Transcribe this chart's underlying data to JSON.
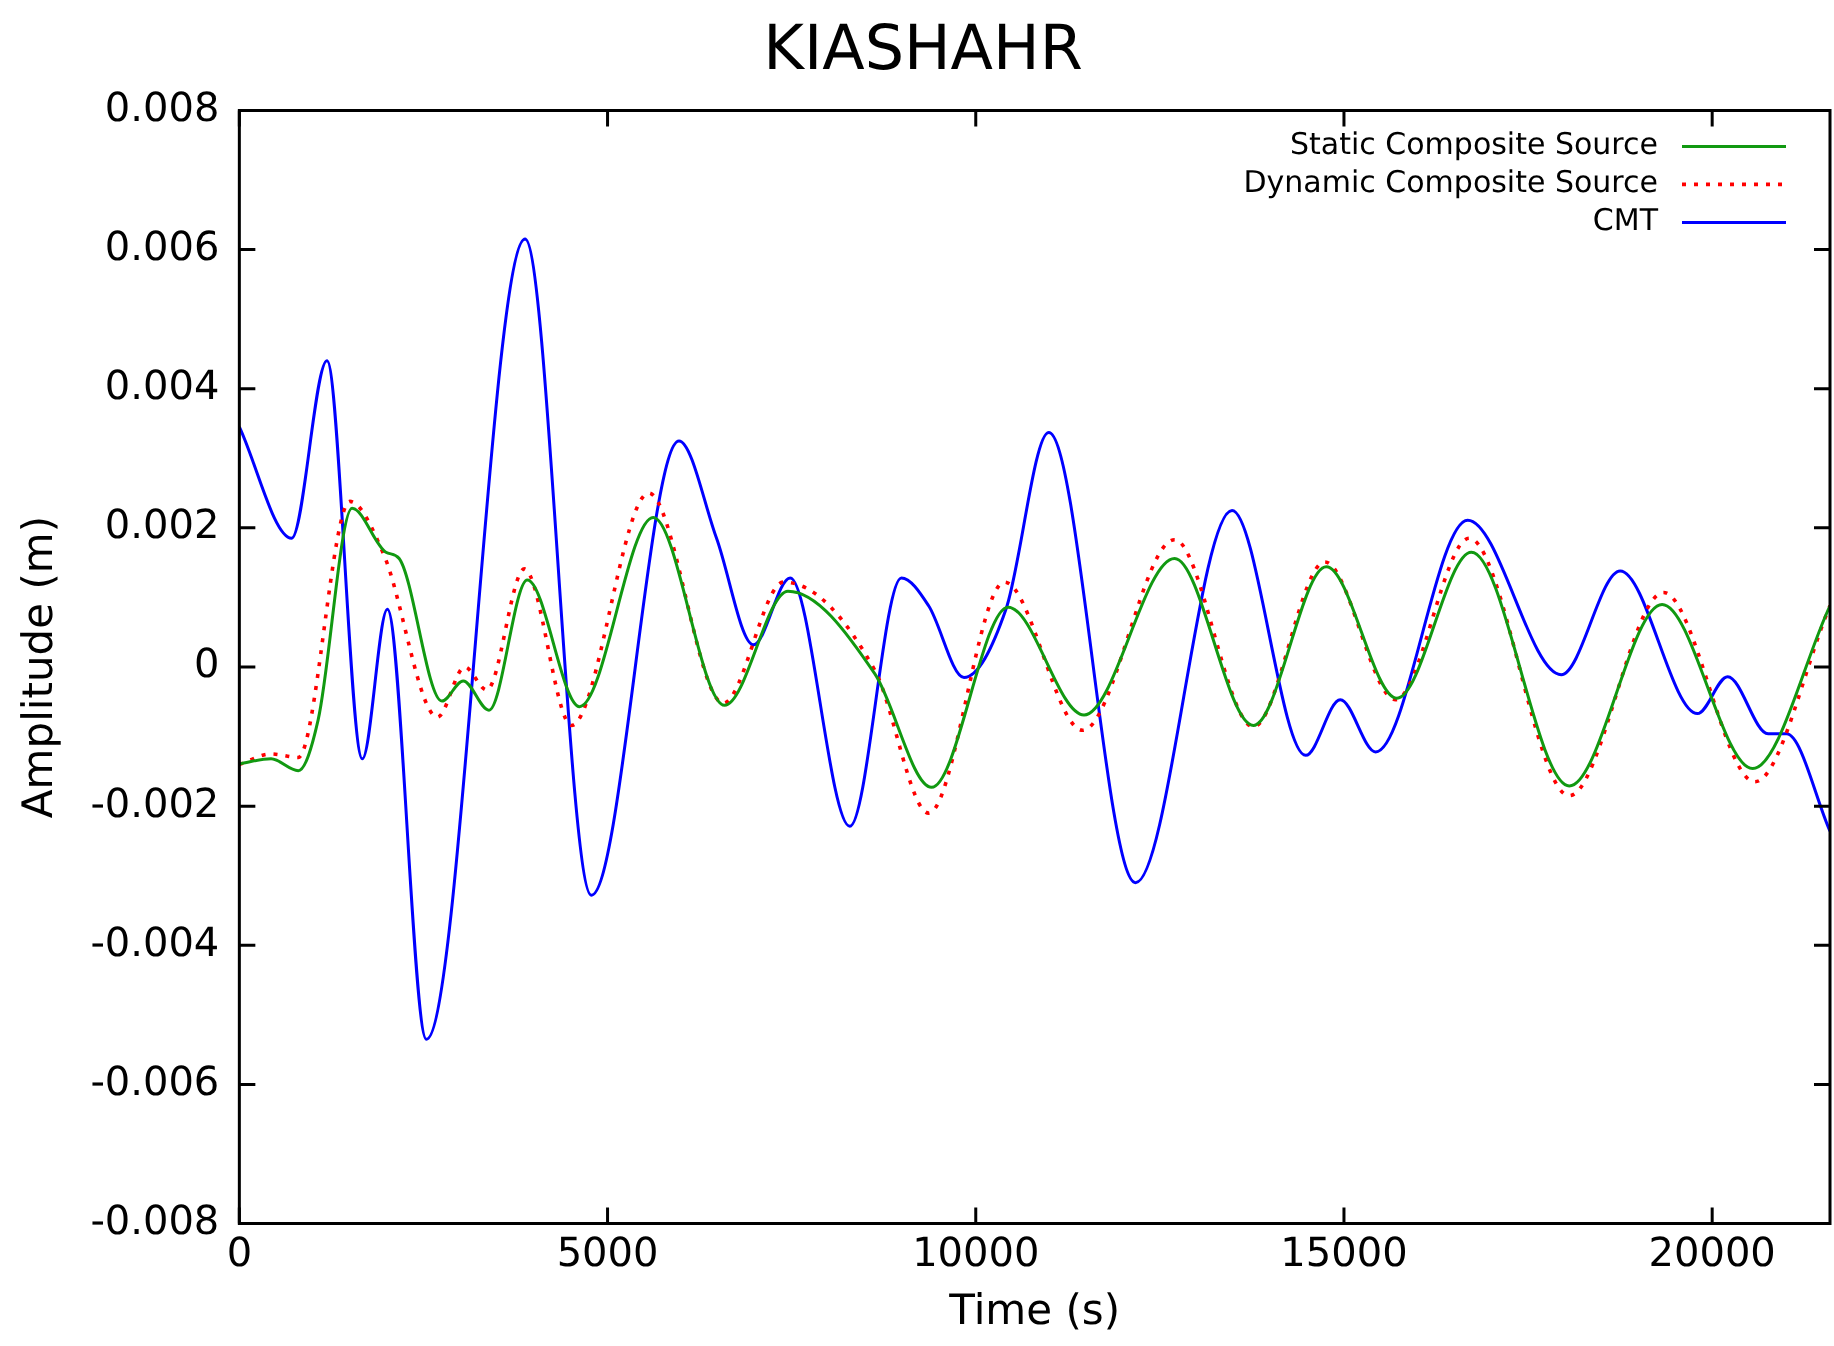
{
  "chart_data": {
    "type": "line",
    "title": "KIASHAHR",
    "xlabel": "Time (s)",
    "ylabel": "Amplitude (m)",
    "xlim": [
      0,
      21600
    ],
    "xticks": [
      0,
      5000,
      10000,
      15000,
      20000
    ],
    "ylim": [
      -0.008,
      0.008
    ],
    "yticks": [
      -0.008,
      -0.006,
      -0.004,
      -0.002,
      0,
      0.002,
      0.004,
      0.006,
      0.008
    ],
    "legend": "top right",
    "marker": "none",
    "series": [
      {
        "name": "Static Composite Source",
        "color": "#119911",
        "line_style": "solid",
        "x": [
          0,
          430,
          800,
          1070,
          1530,
          1990,
          2170,
          2750,
          3040,
          3390,
          3910,
          4620,
          5620,
          6590,
          7450,
          8630,
          9400,
          10440,
          11470,
          12700,
          13770,
          14760,
          15720,
          16730,
          18060,
          19320,
          20550,
          21600
        ],
        "values": [
          -0.00139,
          -0.00132,
          -0.00149,
          -0.00076,
          0.00228,
          0.00165,
          0.00156,
          -0.00049,
          -0.0002,
          -0.00062,
          0.00125,
          -0.00057,
          0.00215,
          -0.00055,
          0.00109,
          -0.0001,
          -0.00173,
          0.00086,
          -0.00069,
          0.00156,
          -0.00084,
          0.00144,
          -0.00045,
          0.00165,
          -0.00171,
          0.0009,
          -0.00146,
          0.00088
        ]
      },
      {
        "name": "Dynamic Composite Source",
        "color": "#ff0000",
        "line_style": "dotted",
        "x": [
          0,
          430,
          800,
          1500,
          1960,
          2690,
          3060,
          3360,
          3870,
          4510,
          5560,
          6570,
          7390,
          8630,
          9360,
          10390,
          11450,
          12700,
          13770,
          14740,
          15700,
          16700,
          18060,
          19340,
          20580,
          21600
        ],
        "values": [
          -0.0014,
          -0.00125,
          -0.0013,
          0.00238,
          0.00162,
          -0.00072,
          0,
          -0.00033,
          0.00141,
          -0.00084,
          0.0025,
          -0.00052,
          0.00122,
          -5e-05,
          -0.0021,
          0.00122,
          -0.00091,
          0.00183,
          -0.00086,
          0.00151,
          -0.00047,
          0.00185,
          -0.00185,
          0.00107,
          -0.00165,
          0.00088
        ]
      },
      {
        "name": "CMT",
        "color": "#0000ff",
        "line_style": "solid",
        "x": [
          0,
          710,
          1190,
          1670,
          2010,
          2540,
          3880,
          4780,
          5970,
          6480,
          6980,
          7480,
          8290,
          8990,
          9360,
          9840,
          10410,
          10990,
          12170,
          13480,
          14480,
          14950,
          15430,
          16680,
          17950,
          18750,
          19800,
          20210,
          20760,
          21010,
          21600
        ],
        "values": [
          0.00345,
          0.00185,
          0.0044,
          -0.00132,
          0.00083,
          -0.00535,
          0.00615,
          -0.00328,
          0.00325,
          0.00185,
          0.00032,
          0.00128,
          -0.00229,
          0.00128,
          0.00088,
          -0.00015,
          0.00083,
          0.00337,
          -0.0031,
          0.00225,
          -0.00127,
          -0.00047,
          -0.00122,
          0.00211,
          -0.00011,
          0.00138,
          -0.00067,
          -0.00014,
          -0.00096,
          -0.00096,
          -0.00236
        ]
      }
    ]
  }
}
